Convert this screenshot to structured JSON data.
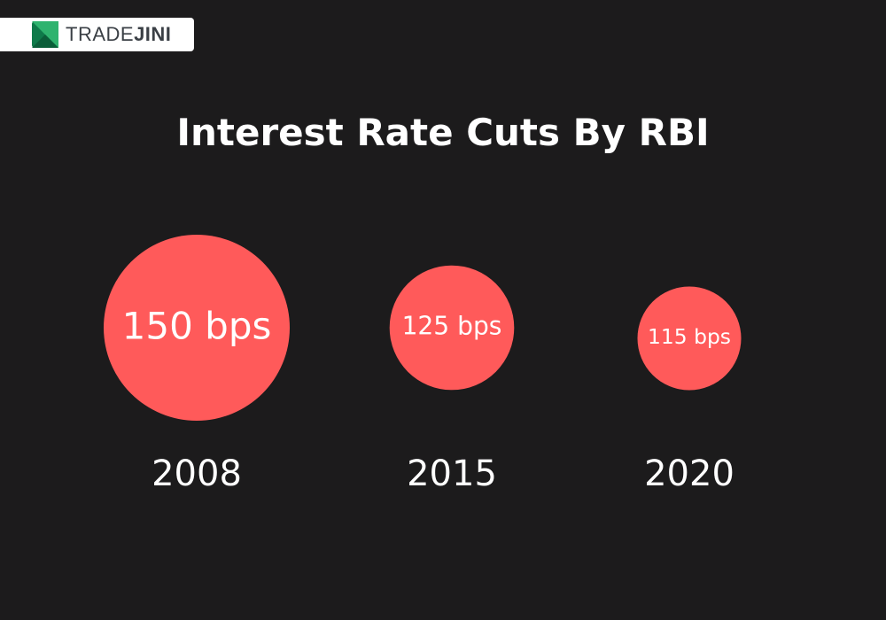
{
  "brand": {
    "name_part1": "TRADE",
    "name_part2": "JINI",
    "logo_icon": "tradejini-logo-icon",
    "colors": {
      "green_dark": "#0f7a4a",
      "green_light": "#2fb36e"
    }
  },
  "chart_data": {
    "type": "bubble",
    "title": "Interest Rate Cuts By RBI",
    "unit": "bps",
    "categories": [
      "2008",
      "2015",
      "2020"
    ],
    "values": [
      150,
      125,
      115
    ],
    "value_labels": [
      "150 bps",
      "125 bps",
      "115 bps"
    ],
    "bubble_color": "#ff5a5a",
    "background_color": "#1c1b1c",
    "text_color": "#ffffff"
  }
}
